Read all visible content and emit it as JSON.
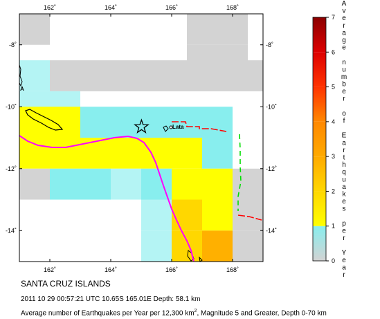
{
  "map": {
    "title": "SANTA CRUZ ISLANDS",
    "event_info": "2011 10 29 00:57:21 UTC 10.65S 165.01E Depth: 58.1 km",
    "caption_prefix": "Average number of Earthquakes per Year per 12,300 km",
    "caption_superscript": "2",
    "caption_suffix": ", Magnitude 5 and Greater, Depth 0-70 km",
    "place_labels": [
      "Lata",
      "A"
    ],
    "lon_ticks": [
      "162˚",
      "164˚",
      "166˚",
      "168˚"
    ],
    "lat_ticks": [
      "-8˚",
      "-10˚",
      "-12˚",
      "-14˚"
    ],
    "extent": {
      "lon_min": 161,
      "lon_max": 169,
      "lat_min": -15,
      "lat_max": -7
    },
    "epicenter": {
      "lon": 165.01,
      "lat": -10.65,
      "symbol": "star-icon"
    },
    "grid_step_deg": 1,
    "colors": {
      "0": "#d3d3d3",
      "0.5": "#b4f4f4",
      "1": "#88eeee",
      "1.5": "#ffff00",
      "2": "#ffd700",
      "2.5": "#ffb000",
      "3": "#ff8800",
      "plate_boundary": "#ff00ff",
      "trench": "#ff0000",
      "ridge": "#00dd00"
    },
    "grid_cells": [
      {
        "lon": 161,
        "lat": -7,
        "v": 0
      },
      {
        "lon": 166.5,
        "lat": -7,
        "v": 0
      },
      {
        "lon": 167.5,
        "lat": -7,
        "v": 0
      },
      {
        "lon": 166.5,
        "lat": -8,
        "v": 0
      },
      {
        "lon": 167.5,
        "lat": -8,
        "v": 0
      },
      {
        "lon": 161,
        "lat": -8.5,
        "v": 0.5
      },
      {
        "lon": 162,
        "lat": -8.5,
        "v": 0
      },
      {
        "lon": 163,
        "lat": -8.5,
        "v": 0
      },
      {
        "lon": 164,
        "lat": -8.5,
        "v": 0
      },
      {
        "lon": 165,
        "lat": -8.5,
        "v": 0
      },
      {
        "lon": 166,
        "lat": -8.5,
        "v": 0
      },
      {
        "lon": 167,
        "lat": -8.5,
        "v": 0
      },
      {
        "lon": 168,
        "lat": -8.5,
        "v": 0
      },
      {
        "lon": 161,
        "lat": -9.5,
        "v": 0.5
      },
      {
        "lon": 162,
        "lat": -9.5,
        "v": 0.5
      },
      {
        "lon": 161,
        "lat": -10,
        "v": 1.5
      },
      {
        "lon": 162,
        "lat": -10,
        "v": 1.5
      },
      {
        "lon": 163,
        "lat": -10,
        "v": 1
      },
      {
        "lon": 164,
        "lat": -10,
        "v": 1
      },
      {
        "lon": 165,
        "lat": -10,
        "v": 1
      },
      {
        "lon": 166,
        "lat": -10,
        "v": 1
      },
      {
        "lon": 167,
        "lat": -10,
        "v": 1
      },
      {
        "lon": 161,
        "lat": -11,
        "v": 1.5
      },
      {
        "lon": 162,
        "lat": -11,
        "v": 1.5
      },
      {
        "lon": 163,
        "lat": -11,
        "v": 1.5
      },
      {
        "lon": 164,
        "lat": -11,
        "v": 1.5
      },
      {
        "lon": 165,
        "lat": -11,
        "v": 1.5
      },
      {
        "lon": 166,
        "lat": -11,
        "v": 1.5
      },
      {
        "lon": 167,
        "lat": -11,
        "v": 1
      },
      {
        "lon": 161,
        "lat": -12,
        "v": 0
      },
      {
        "lon": 162,
        "lat": -12,
        "v": 1
      },
      {
        "lon": 163,
        "lat": -12,
        "v": 1
      },
      {
        "lon": 164,
        "lat": -12,
        "v": 0.5
      },
      {
        "lon": 165,
        "lat": -12,
        "v": 1
      },
      {
        "lon": 166,
        "lat": -12,
        "v": 1.5
      },
      {
        "lon": 167,
        "lat": -12,
        "v": 1.5
      },
      {
        "lon": 168,
        "lat": -12,
        "v": 0
      },
      {
        "lon": 165,
        "lat": -13,
        "v": 0.5
      },
      {
        "lon": 166,
        "lat": -13,
        "v": 2
      },
      {
        "lon": 167,
        "lat": -13,
        "v": 1.5
      },
      {
        "lon": 168,
        "lat": -13,
        "v": 0
      },
      {
        "lon": 165,
        "lat": -14,
        "v": 0.5
      },
      {
        "lon": 166,
        "lat": -14,
        "v": 2
      },
      {
        "lon": 167,
        "lat": -14,
        "v": 2.5
      },
      {
        "lon": 168,
        "lat": -14,
        "v": 0
      },
      {
        "lon": 165,
        "lat": -15,
        "v": 0
      },
      {
        "lon": 166,
        "lat": -15,
        "v": 1.5
      },
      {
        "lon": 167,
        "lat": -15,
        "v": 1.5
      },
      {
        "lon": 168,
        "lat": -15,
        "v": 1
      }
    ]
  },
  "colorbar": {
    "title_letters": [
      "A",
      "v",
      "e",
      "r",
      "a",
      "g",
      "e",
      " ",
      "n",
      "u",
      "m",
      "b",
      "e",
      "r",
      " ",
      "o",
      "f",
      " ",
      "E",
      "a",
      "r",
      "t",
      "h",
      "q",
      "u",
      "a",
      "k",
      "e",
      "s",
      " ",
      "p",
      "e",
      "r",
      " ",
      "Y",
      "e",
      "a",
      "r"
    ],
    "tick_labels": [
      "0",
      "1",
      "2",
      "3",
      "4",
      "5",
      "6",
      "7"
    ],
    "stops": [
      {
        "from": 0,
        "to": 1,
        "color_top": "#88eeee",
        "color_bottom": "#d3d3d3"
      },
      {
        "from": 1,
        "to": 2,
        "color_top": "#ffd700",
        "color_bottom": "#ffff00"
      },
      {
        "from": 2,
        "to": 3,
        "color_top": "#ffaa00",
        "color_bottom": "#ffd700"
      },
      {
        "from": 3,
        "to": 4,
        "color_top": "#ff8800",
        "color_bottom": "#ffaa00"
      },
      {
        "from": 4,
        "to": 5,
        "color_top": "#ff3300",
        "color_bottom": "#ff8800"
      },
      {
        "from": 5,
        "to": 6,
        "color_top": "#dd0000",
        "color_bottom": "#ff3300"
      },
      {
        "from": 6,
        "to": 7,
        "color_top": "#8b0000",
        "color_bottom": "#dd0000"
      }
    ]
  }
}
